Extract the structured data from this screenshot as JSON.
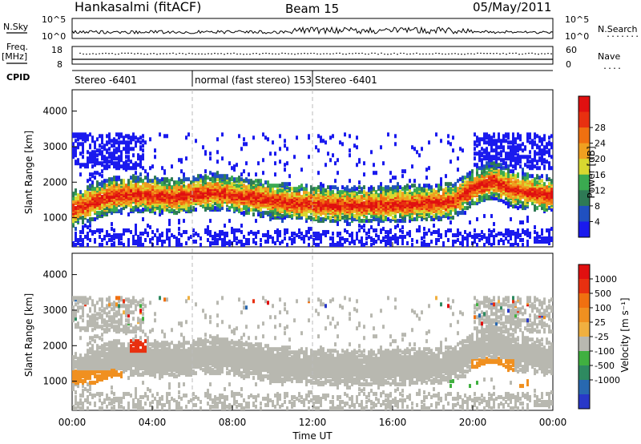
{
  "header": {
    "station": "Hankasalmi (fitACF)",
    "beam": "Beam 15",
    "date": "05/May/2011"
  },
  "side_labels": {
    "nsky": "N.Sky",
    "nsearch": "N.Search",
    "freq": "Freq.",
    "mhz": "[MHz]",
    "nave": "Nave",
    "cpid": "CPID",
    "dots": "........",
    "dots_short": "...."
  },
  "top_panels": {
    "noise_ticks_left": [
      "10^5",
      "10^0"
    ],
    "noise_ticks_right": [
      "10^5",
      "10^0"
    ],
    "freq_ticks_left": [
      "18",
      "8"
    ],
    "freq_ticks_right": [
      "60",
      "0"
    ]
  },
  "cpid_segments": [
    {
      "label": "Stereo -6401",
      "start_hour": 0
    },
    {
      "label": "normal (fast stereo) 153",
      "start_hour": 6
    },
    {
      "label": "Stereo -6401",
      "start_hour": 12
    }
  ],
  "axes": {
    "ylabel": "Slant Range [km]",
    "xlabel": "Time UT",
    "x_ticks": [
      "00:00",
      "04:00",
      "08:00",
      "12:00",
      "16:00",
      "20:00",
      "00:00"
    ],
    "x_range_hours": [
      0,
      24
    ],
    "y_ticks": [
      "1000",
      "2000",
      "3000",
      "4000"
    ],
    "y_range_km": [
      180,
      4600
    ]
  },
  "colorbars": {
    "power": {
      "label": "Power [dB]",
      "ticks": [
        "4",
        "8",
        "12",
        "16",
        "20",
        "24",
        "28"
      ],
      "colors": [
        "#1a1aee",
        "#2050c0",
        "#2e7a55",
        "#3aaa50",
        "#d8d830",
        "#f0a020",
        "#f07010",
        "#e83010",
        "#e01010"
      ]
    },
    "velocity": {
      "label": "Velocity [m s⁻¹]",
      "ticks": [
        "1000",
        "500",
        "100",
        "25",
        "-25",
        "-100",
        "-500",
        "-1000"
      ],
      "colors": [
        "#2838c8",
        "#2868b0",
        "#2e8a60",
        "#40b040",
        "#b8b8b0",
        "#f0b040",
        "#f09020",
        "#f07010",
        "#e83010",
        "#e01010"
      ]
    }
  },
  "chart_data": {
    "type": "heatmap",
    "title": "Hankasalmi (fitACF) Beam 15 05/May/2011",
    "xlabel": "Time UT",
    "ylabel": "Slant Range [km]",
    "xlim_hours": [
      0,
      24
    ],
    "ylim_km": [
      180,
      4600
    ],
    "power_band": [
      [
        0.0,
        1200
      ],
      [
        1.0,
        1400
      ],
      [
        2.0,
        1580
      ],
      [
        3.0,
        1620
      ],
      [
        4.0,
        1580
      ],
      [
        5.0,
        1540
      ],
      [
        6.0,
        1600
      ],
      [
        7.0,
        1670
      ],
      [
        8.0,
        1600
      ],
      [
        9.0,
        1530
      ],
      [
        10.0,
        1440
      ],
      [
        11.0,
        1380
      ],
      [
        12.0,
        1330
      ],
      [
        13.0,
        1320
      ],
      [
        14.0,
        1310
      ],
      [
        15.0,
        1320
      ],
      [
        16.0,
        1340
      ],
      [
        17.0,
        1350
      ],
      [
        18.0,
        1380
      ],
      [
        19.0,
        1420
      ],
      [
        20.0,
        1800
      ],
      [
        21.0,
        2000
      ],
      [
        22.0,
        1750
      ],
      [
        23.0,
        1650
      ],
      [
        24.0,
        1600
      ]
    ],
    "power_peak_db": 28,
    "velocity_band_ms": [
      [
        0.0,
        0
      ],
      [
        6.0,
        0
      ],
      [
        12.0,
        0
      ],
      [
        18.0,
        0
      ],
      [
        24.0,
        0
      ]
    ],
    "negative_velocity_regions": [
      {
        "t_hours": [
          0.0,
          2.5
        ],
        "range_km": [
          900,
          1300
        ],
        "velocity_ms": -200
      },
      {
        "t_hours": [
          2.8,
          3.6
        ],
        "range_km": [
          1800,
          2100
        ],
        "velocity_ms": -700
      },
      {
        "t_hours": [
          19.8,
          22.0
        ],
        "range_km": [
          1100,
          1600
        ],
        "velocity_ms": -300
      },
      {
        "t_hours": [
          22.0,
          24.0
        ],
        "range_km": [
          700,
          1000
        ],
        "velocity_ms": -200
      }
    ],
    "positive_velocity_regions": [
      {
        "t_hours": [
          18.8,
          20.2
        ],
        "range_km": [
          800,
          1000
        ],
        "velocity_ms": 150
      }
    ]
  }
}
